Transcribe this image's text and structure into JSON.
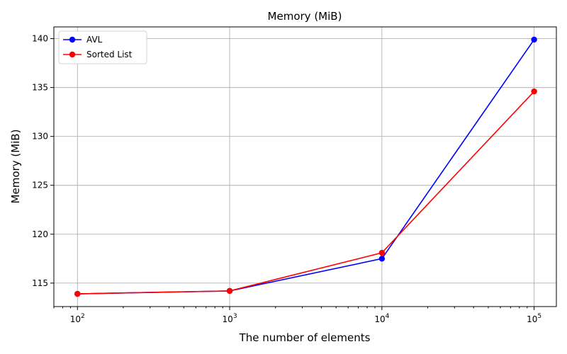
{
  "chart_data": {
    "type": "line",
    "title": "Memory (MiB)",
    "xlabel": "The number of elements",
    "ylabel": "Memory (MiB)",
    "x_scale": "log",
    "xlim": [
      70,
      140000
    ],
    "ylim": [
      112.6,
      141.2
    ],
    "xticks": [
      100,
      1000,
      10000,
      100000
    ],
    "xtick_labels": [
      {
        "base": "10",
        "exp": "2"
      },
      {
        "base": "10",
        "exp": "3"
      },
      {
        "base": "10",
        "exp": "4"
      },
      {
        "base": "10",
        "exp": "5"
      }
    ],
    "yticks": [
      115,
      120,
      125,
      130,
      135,
      140
    ],
    "ytick_labels": [
      "115",
      "120",
      "125",
      "130",
      "135",
      "140"
    ],
    "grid": true,
    "legend_position": "top-left",
    "x": [
      100,
      1000,
      10000,
      100000
    ],
    "series": [
      {
        "name": "AVL",
        "color": "#0000ff",
        "marker": "circle",
        "values": [
          113.9,
          114.2,
          117.5,
          139.9
        ]
      },
      {
        "name": "Sorted List",
        "color": "#ff0000",
        "marker": "circle",
        "values": [
          113.9,
          114.2,
          118.1,
          134.6
        ]
      }
    ]
  }
}
